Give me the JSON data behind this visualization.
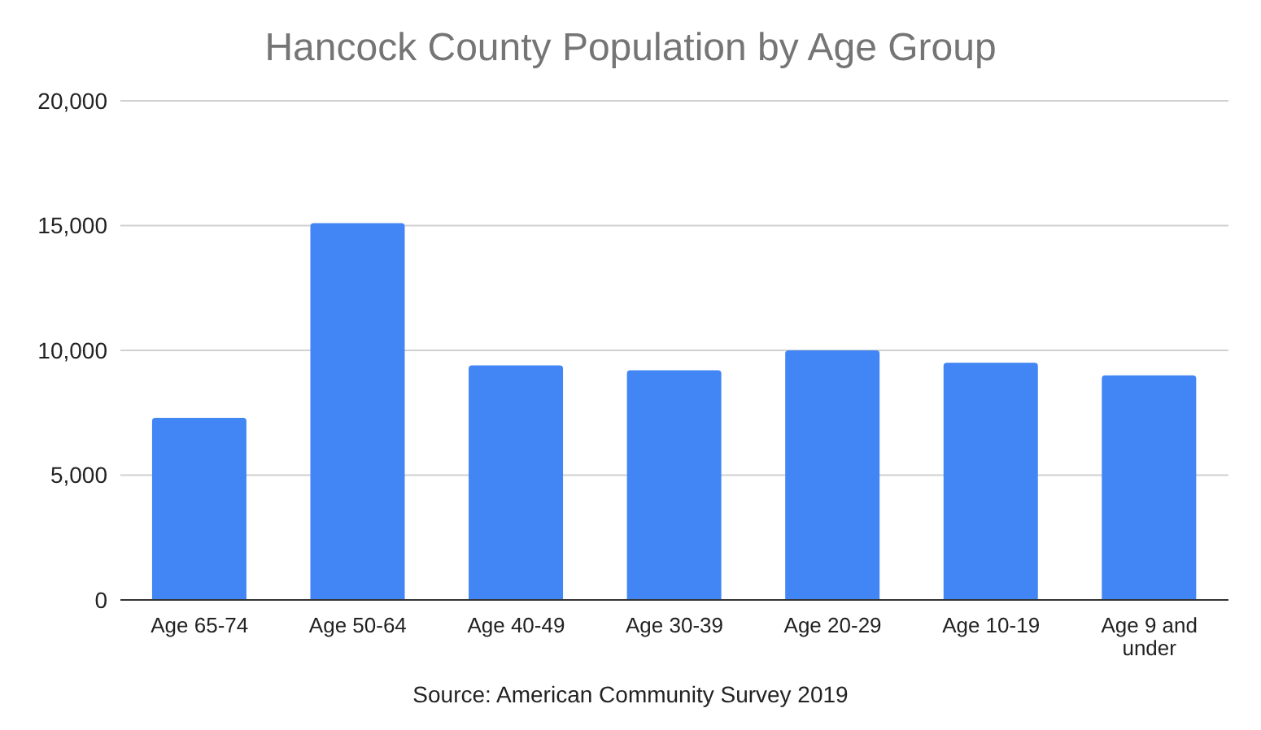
{
  "chart_data": {
    "type": "bar",
    "title": "Hancock County Population by Age Group",
    "categories": [
      "Age 65-74",
      "Age 50-64",
      "Age 40-49",
      "Age 30-39",
      "Age 20-29",
      "Age 10-19",
      "Age 9 and under"
    ],
    "values": [
      7300,
      15100,
      9400,
      9200,
      10000,
      9500,
      9000
    ],
    "color": "#4285f4",
    "ylim": [
      0,
      20000
    ],
    "yticks": [
      {
        "value": 0,
        "label": "0"
      },
      {
        "value": 5000,
        "label": "5,000"
      },
      {
        "value": 10000,
        "label": "10,000"
      },
      {
        "value": 15000,
        "label": "15,000"
      },
      {
        "value": 20000,
        "label": "20,000"
      }
    ],
    "grid": "y",
    "legend": false,
    "annotations": [
      "Source: American Community Survey 2019"
    ]
  }
}
